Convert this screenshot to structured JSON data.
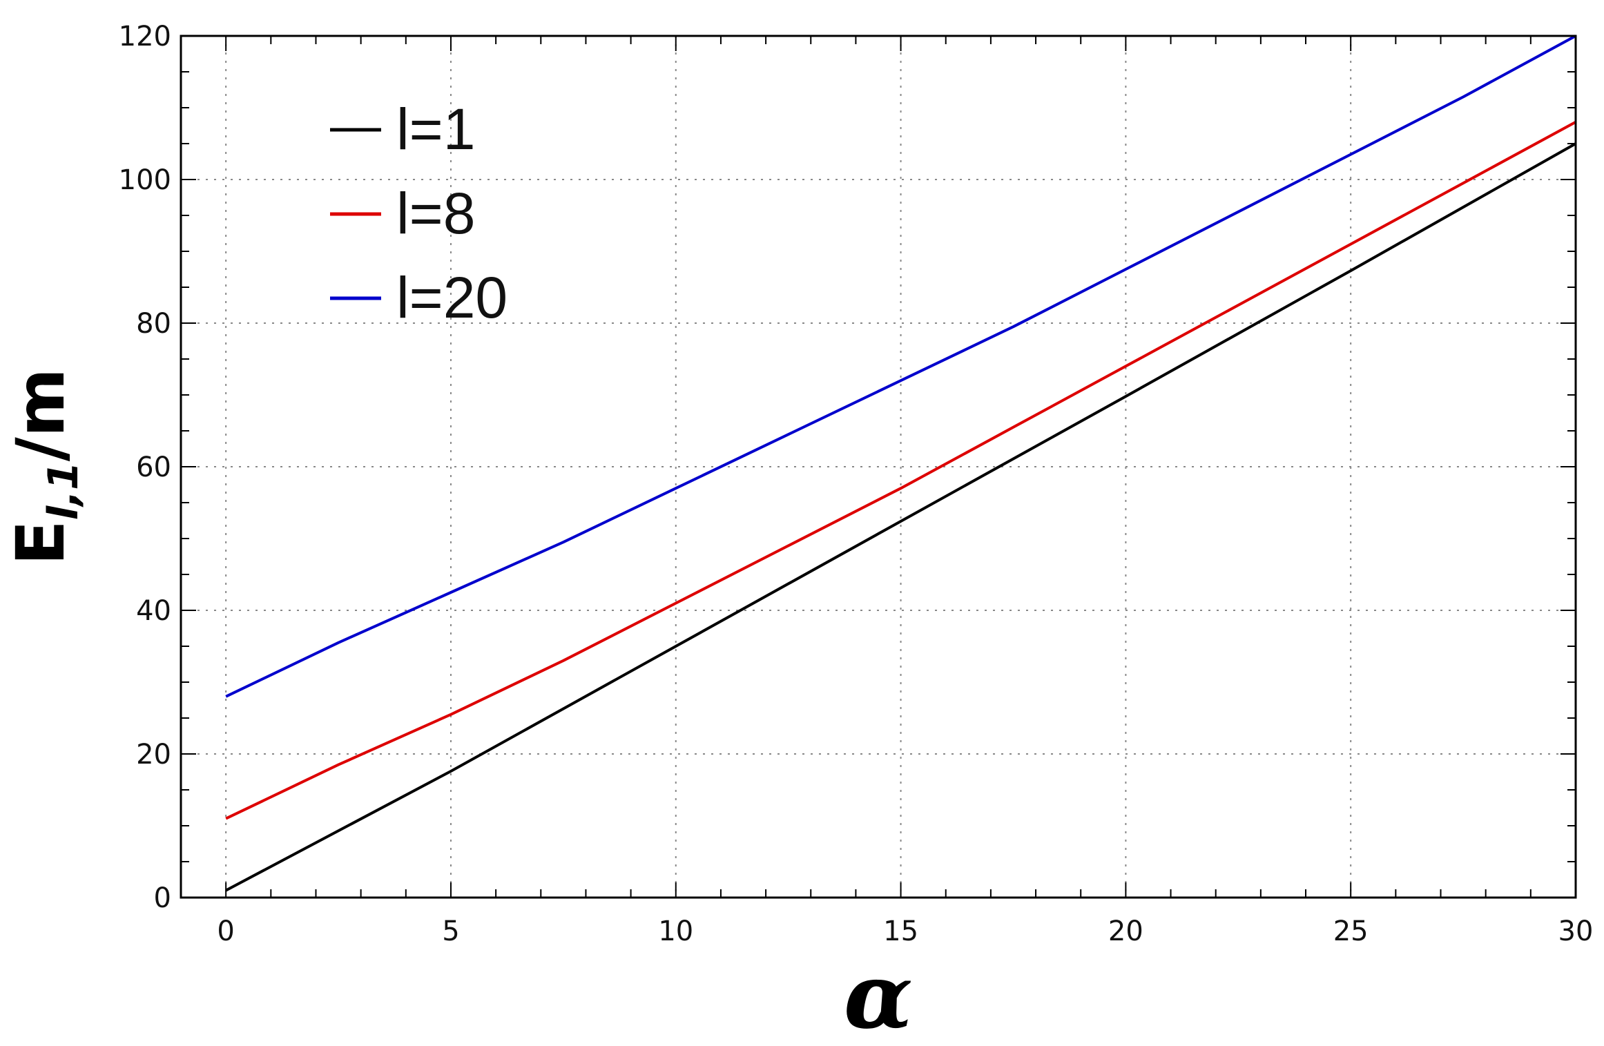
{
  "chart_data": {
    "type": "line",
    "xlabel": "α",
    "ylabel": {
      "base": "E",
      "subscript": "l,1",
      "suffix": "/m"
    },
    "xlim": [
      -1,
      30
    ],
    "ylim": [
      0,
      120
    ],
    "xticks": [
      0,
      5,
      10,
      15,
      20,
      25,
      30
    ],
    "yticks": [
      0,
      20,
      40,
      60,
      80,
      100,
      120
    ],
    "x_minor_step": 1,
    "y_minor_step": 5,
    "grid": true,
    "legend_position": "top-left",
    "series": [
      {
        "name": "l=1",
        "color": "#000000",
        "x": [
          0,
          5,
          10,
          15,
          20,
          25,
          30
        ],
        "y": [
          1,
          17.6,
          35,
          52.4,
          69.8,
          87.3,
          105
        ]
      },
      {
        "name": "l=8",
        "color": "#dd0000",
        "x": [
          0,
          2.5,
          5,
          7.5,
          10,
          12.5,
          15,
          17.5,
          20,
          22.5,
          25,
          27.5,
          30
        ],
        "y": [
          11,
          18.5,
          25.5,
          33,
          41,
          49,
          57,
          65.5,
          74,
          82.5,
          91,
          99.5,
          108
        ]
      },
      {
        "name": "l=20",
        "color": "#0000cc",
        "x": [
          0,
          2.5,
          5,
          7.5,
          10,
          12.5,
          15,
          17.5,
          20,
          22.5,
          25,
          27.5,
          30
        ],
        "y": [
          28,
          35.5,
          42.5,
          49.5,
          57,
          64.5,
          72,
          79.5,
          87.5,
          95.5,
          103.5,
          111.5,
          120
        ]
      }
    ]
  }
}
